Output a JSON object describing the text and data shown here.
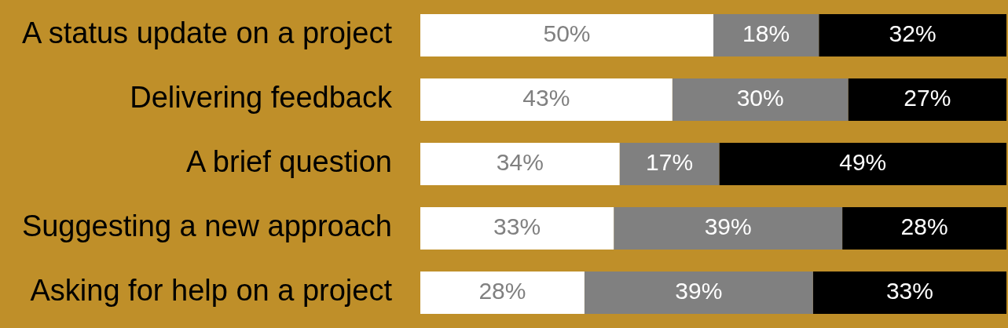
{
  "chart_data": {
    "type": "bar",
    "orientation": "horizontal",
    "stacked": true,
    "categories": [
      "A status update on a project",
      "Delivering feedback",
      "A brief question",
      "Suggesting a new approach",
      "Asking for help on a project"
    ],
    "series": [
      {
        "color": "#ffffff",
        "values": [
          50,
          43,
          34,
          33,
          28
        ],
        "value_labels": [
          "50%",
          "43%",
          "34%",
          "33%",
          "28%"
        ]
      },
      {
        "color": "#808080",
        "values": [
          18,
          30,
          17,
          39,
          39
        ],
        "value_labels": [
          "18%",
          "30%",
          "17%",
          "39%",
          "39%"
        ]
      },
      {
        "color": "#000000",
        "values": [
          32,
          27,
          49,
          28,
          33
        ],
        "value_labels": [
          "32%",
          "27%",
          "49%",
          "28%",
          "33%"
        ]
      }
    ],
    "xlim": [
      0,
      100
    ],
    "tick_labels": "y"
  }
}
